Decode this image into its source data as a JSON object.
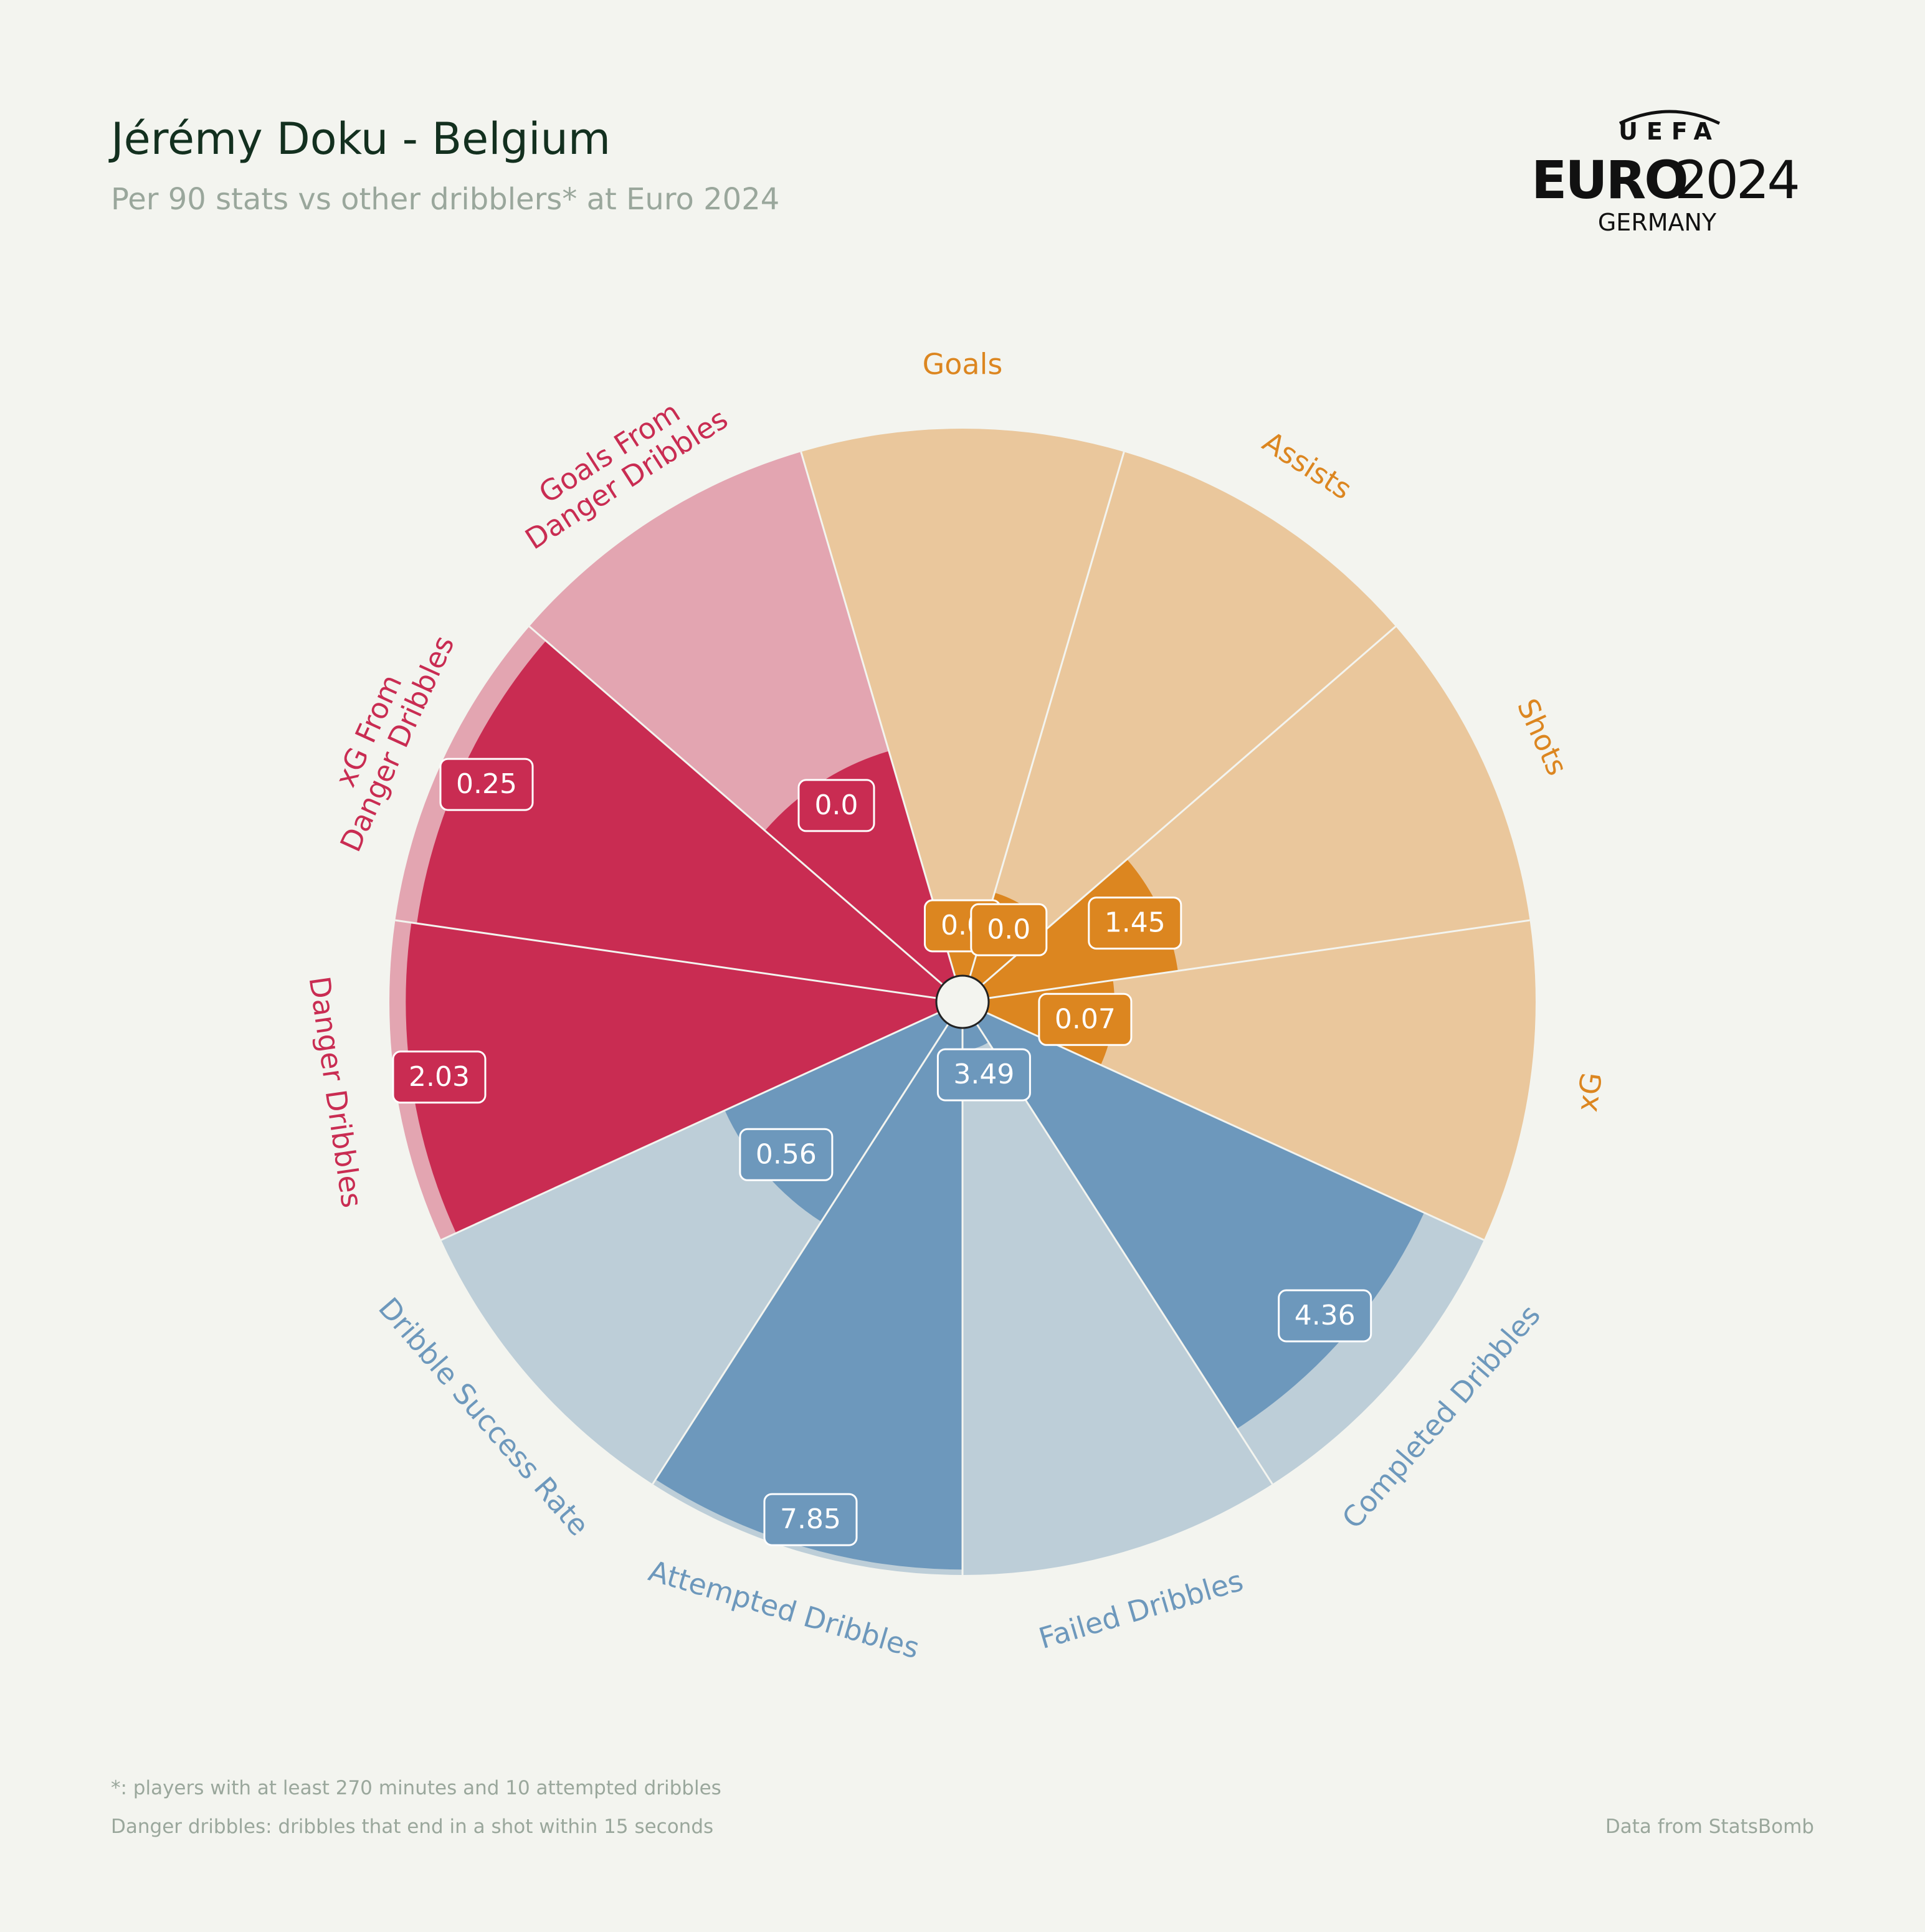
{
  "header": {
    "title": "Jérémy Doku - Belgium",
    "subtitle": "Per 90 stats vs other dribblers* at Euro 2024"
  },
  "logo": {
    "top": "UEFA",
    "main_left": "EURO",
    "main_right": "2024",
    "bottom": "GERMANY"
  },
  "footer": {
    "note1": "*: players with at least 270 minutes and 10 attempted dribbles",
    "note2": "Danger dribbles: dribbles that end in a shot within 15 seconds",
    "source": "Data from StatsBomb"
  },
  "colors": {
    "background": "#f3f4ef",
    "attacking": "#dc8620",
    "attacking_light": "#eac79c",
    "dribbling": "#6d98bc",
    "dribbling_light": "#bdced8",
    "danger": "#c92c52",
    "danger_light": "#e3a5b1"
  },
  "chart_data": {
    "type": "pizza",
    "max_percentile": 100,
    "categories": [
      {
        "name": "Goals",
        "value": "0.0",
        "percentile": 9,
        "group": "attacking"
      },
      {
        "name": "Assists",
        "value": "0.0",
        "percentile": 16,
        "group": "attacking"
      },
      {
        "name": "Shots",
        "value": "1.45",
        "percentile": 35,
        "group": "attacking"
      },
      {
        "name": "xG",
        "value": "0.07",
        "percentile": 23,
        "group": "attacking"
      },
      {
        "name": "Completed Dribbles",
        "value": "4.36",
        "percentile": 88,
        "group": "dribbling"
      },
      {
        "name": "Failed Dribbles",
        "value": "3.49",
        "percentile": 4,
        "group": "dribbling"
      },
      {
        "name": "Attempted Dribbles",
        "value": "7.85",
        "percentile": 99,
        "group": "dribbling"
      },
      {
        "name": "Dribble Success Rate",
        "value": "0.56",
        "percentile": 43,
        "group": "dribbling"
      },
      {
        "name": "Danger Dribbles",
        "value": "2.03",
        "percentile": 97,
        "group": "danger"
      },
      {
        "name": "xG From Danger Dribbles",
        "value": "0.25",
        "percentile": 96,
        "group": "danger"
      },
      {
        "name": "Goals From Danger Dribbles",
        "value": "0.0",
        "percentile": 43,
        "group": "danger"
      }
    ]
  }
}
